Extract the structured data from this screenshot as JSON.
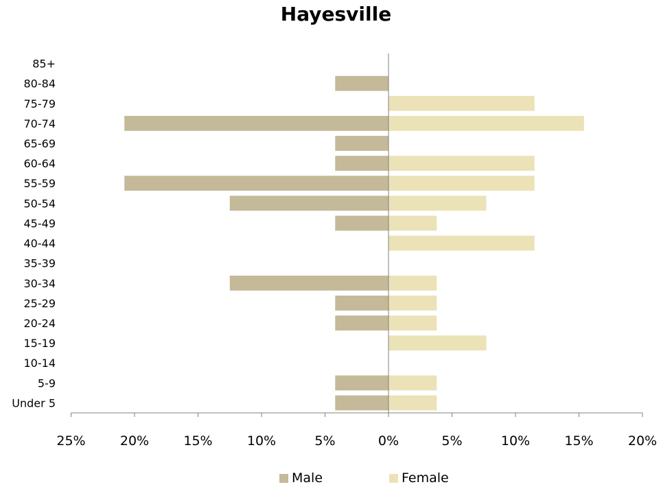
{
  "chart_data": {
    "type": "bar",
    "orientation": "horizontal",
    "subtype": "population-pyramid",
    "title": "Hayesville",
    "categories": [
      "Under 5",
      "5-9",
      "10-14",
      "15-19",
      "20-24",
      "25-29",
      "30-34",
      "35-39",
      "40-44",
      "45-49",
      "50-54",
      "55-59",
      "60-64",
      "65-69",
      "70-74",
      "75-79",
      "80-84",
      "85+"
    ],
    "series": [
      {
        "name": "Male",
        "color": "#c4b998",
        "side": "left",
        "values": [
          4.2,
          4.2,
          0,
          0,
          4.2,
          4.2,
          12.5,
          0,
          0,
          4.2,
          12.5,
          20.8,
          4.2,
          4.2,
          20.8,
          0,
          4.2,
          0
        ]
      },
      {
        "name": "Female",
        "color": "#ebe3b7",
        "side": "right",
        "values": [
          3.8,
          3.8,
          0,
          7.7,
          3.8,
          3.8,
          3.8,
          0,
          11.5,
          3.8,
          7.7,
          11.5,
          11.5,
          0,
          15.4,
          11.5,
          0,
          0
        ]
      }
    ],
    "xlim": [
      -25,
      20
    ],
    "x_ticks": [
      -25,
      -20,
      -15,
      -10,
      -5,
      0,
      5,
      10,
      15,
      20
    ],
    "x_tick_labels": [
      "25%",
      "20%",
      "15%",
      "10%",
      "5%",
      "0%",
      "5%",
      "10%",
      "15%",
      "20%"
    ],
    "grid": false,
    "legend_position": "bottom"
  }
}
